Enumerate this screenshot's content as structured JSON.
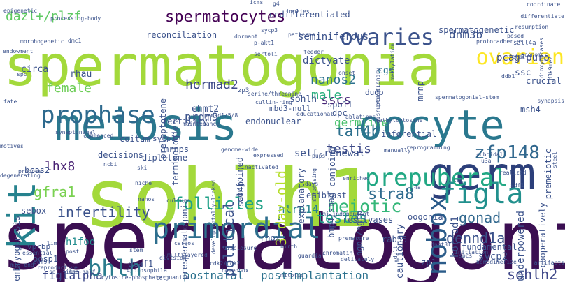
{
  "words": [
    {
      "text": "spermatogonial",
      "color": "#3b0f52",
      "rotate": false
    },
    {
      "text": "spermatogonia",
      "color": "#a3d93b",
      "rotate": false
    },
    {
      "text": "sohlh1",
      "color": "#a3d93b",
      "rotate": false
    },
    {
      "text": "meiosis",
      "color": "#2a788e",
      "rotate": false
    },
    {
      "text": "oocyte",
      "color": "#2a788e",
      "rotate": false
    },
    {
      "text": "germ",
      "color": "#2c3f7a",
      "rotate": false
    },
    {
      "text": "kit",
      "color": "#26828e",
      "rotate": true
    },
    {
      "text": "prepuberal",
      "color": "#22a884",
      "rotate": false
    },
    {
      "text": "primordial",
      "color": "#2e6f8e",
      "rotate": false
    },
    {
      "text": "prophase",
      "color": "#2e6a8e",
      "rotate": false
    },
    {
      "text": "figla",
      "color": "#21908d",
      "rotate": false
    },
    {
      "text": "nobox",
      "color": "#2b5c8a",
      "rotate": true
    },
    {
      "text": "bhlh",
      "color": "#2c7c8e",
      "rotate": false
    },
    {
      "text": "ovaries",
      "color": "#3b528b",
      "rotate": false
    },
    {
      "text": "spermatocytes",
      "color": "#440154",
      "rotate": false
    },
    {
      "text": "dazl+/plzf",
      "color": "#5ec962",
      "rotate": false
    },
    {
      "text": "follicles",
      "color": "#1fa187",
      "rotate": false
    },
    {
      "text": "infertility",
      "color": "#3b528b",
      "rotate": false
    },
    {
      "text": "testes",
      "color": "#1f9e89",
      "rotate": false
    },
    {
      "text": "meiotic",
      "color": "#35b779",
      "rotate": false
    },
    {
      "text": "dennd1a",
      "color": "#3b528b",
      "rotate": false
    },
    {
      "text": "zfp148",
      "color": "#31688e",
      "rotate": false
    },
    {
      "text": "taf4b",
      "color": "#2d708e",
      "rotate": false
    },
    {
      "text": "germline",
      "color": "#4ac16d",
      "rotate": false
    },
    {
      "text": "testis",
      "color": "#3e4a89",
      "rotate": false
    },
    {
      "text": "nanos2",
      "color": "#2c728e",
      "rotate": false
    },
    {
      "text": "sscs",
      "color": "#482677",
      "rotate": false
    },
    {
      "text": "male",
      "color": "#2ab07f",
      "rotate": false
    },
    {
      "text": "female",
      "color": "#6ece58",
      "rotate": false
    },
    {
      "text": "hormad2",
      "color": "#3e4a89",
      "rotate": false
    },
    {
      "text": "gonad",
      "color": "#31688e",
      "rotate": false
    },
    {
      "text": "stra8",
      "color": "#2f6b8e",
      "rotate": false
    },
    {
      "text": "lhx8",
      "color": "#482173",
      "rotate": false
    },
    {
      "text": "gfra1",
      "color": "#7ad151",
      "rotate": false
    },
    {
      "text": "sohlh2",
      "color": "#3f4788",
      "rotate": false
    },
    {
      "text": "postnatal",
      "color": "#2c728e",
      "rotate": false
    },
    {
      "text": "postimplantation",
      "color": "#2c728e",
      "rotate": false
    },
    {
      "text": "figlalpha",
      "color": "#3e4a89",
      "rotate": false
    },
    {
      "text": "nlrp14",
      "color": "#26828e",
      "rotate": false
    },
    {
      "text": "political",
      "color": "#3b528b",
      "rotate": true
    },
    {
      "text": "3-day-old",
      "color": "#b5de2b",
      "rotate": true
    },
    {
      "text": "h1foo",
      "color": "#228c8d",
      "rotate": false
    },
    {
      "text": "ovarian",
      "color": "#fde725",
      "rotate": false
    },
    {
      "text": "reconciliation",
      "color": "#3b528b",
      "rotate": false
    },
    {
      "text": "undifferentiated",
      "color": "#3b528b",
      "rotate": false
    },
    {
      "text": "dnm3b",
      "color": "#3b528b",
      "rotate": false
    },
    {
      "text": "pcag-puro",
      "color": "#3e4a89",
      "rotate": false
    },
    {
      "text": "ssc",
      "color": "#3b528b",
      "rotate": false
    },
    {
      "text": "cgs",
      "color": "#2c728e",
      "rotate": false
    },
    {
      "text": "seminiferous",
      "color": "#3b528b",
      "rotate": false
    },
    {
      "text": "dictyate",
      "color": "#3b528b",
      "rotate": false
    },
    {
      "text": "spermatogenetic",
      "color": "#3b528b",
      "rotate": false
    },
    {
      "text": "crucial",
      "color": "#3b528b",
      "rotate": false
    },
    {
      "text": "rhau",
      "color": "#3b528b",
      "rotate": false
    },
    {
      "text": "circa",
      "color": "#3b528b",
      "rotate": false
    },
    {
      "text": "ehmt2",
      "color": "#3b528b",
      "rotate": false
    },
    {
      "text": "sohlh",
      "color": "#3b528b",
      "rotate": false
    },
    {
      "text": "mbd3-null",
      "color": "#3b528b",
      "rotate": false
    },
    {
      "text": "spo11",
      "color": "#3b528b",
      "rotate": false
    },
    {
      "text": "dpc",
      "color": "#3b528b",
      "rotate": false
    },
    {
      "text": "dudp",
      "color": "#3b528b",
      "rotate": false
    },
    {
      "text": "prdm9",
      "color": "#3b528b",
      "rotate": false
    },
    {
      "text": "fertility",
      "color": "#3b528b",
      "rotate": false
    },
    {
      "text": "endonuclear",
      "color": "#3b528b",
      "rotate": false
    },
    {
      "text": "inferential",
      "color": "#3b528b",
      "rotate": false
    },
    {
      "text": "msh4",
      "color": "#3b528b",
      "rotate": false
    },
    {
      "text": "decisions",
      "color": "#3b528b",
      "rotate": false
    },
    {
      "text": "coitum",
      "color": "#3b528b",
      "rotate": false
    },
    {
      "text": "sycp1",
      "color": "#3b528b",
      "rotate": false
    },
    {
      "text": "mrnps",
      "color": "#3b528b",
      "rotate": false
    },
    {
      "text": "self-renewal",
      "color": "#3b528b",
      "rotate": false
    },
    {
      "text": "diplotene",
      "color": "#3b528b",
      "rotate": false
    },
    {
      "text": "bcas2",
      "color": "#3b528b",
      "rotate": false
    },
    {
      "text": "sebox",
      "color": "#3b528b",
      "rotate": false
    },
    {
      "text": "epiblast",
      "color": "#3b528b",
      "rotate": false
    },
    {
      "text": "resolvases",
      "color": "#3b528b",
      "rotate": false
    },
    {
      "text": "oogonia",
      "color": "#3b528b",
      "rotate": false
    },
    {
      "text": "rab35",
      "color": "#3b528b",
      "rotate": false
    },
    {
      "text": "rhox",
      "color": "#3b528b",
      "rotate": false
    },
    {
      "text": "fundamental",
      "color": "#3b528b",
      "rotate": false
    },
    {
      "text": "vprbp",
      "color": "#3b528b",
      "rotate": false
    },
    {
      "text": "oosp1",
      "color": "#3b528b",
      "rotate": false
    },
    {
      "text": "dcaf1",
      "color": "#3b528b",
      "rotate": false
    },
    {
      "text": "sycp2",
      "color": "#3b528b",
      "rotate": false
    },
    {
      "text": "zp1",
      "color": "#3b528b",
      "rotate": false
    },
    {
      "text": "embryogenesis",
      "color": "#3b528b",
      "rotate": true
    },
    {
      "text": "underpowered",
      "color": "#3b528b",
      "rotate": true
    },
    {
      "text": "cooperatively",
      "color": "#3b528b",
      "rotate": true
    },
    {
      "text": "hormad1",
      "color": "#3b528b",
      "rotate": true
    },
    {
      "text": "cautionary",
      "color": "#3b528b",
      "rotate": true
    },
    {
      "text": "conjoined",
      "color": "#3b528b",
      "rotate": true
    },
    {
      "text": "conjoing",
      "color": "#3b528b",
      "rotate": true
    },
    {
      "text": "explanatory",
      "color": "#3b528b",
      "rotate": true
    },
    {
      "text": "prespermatogonia",
      "color": "#3b528b",
      "rotate": true
    },
    {
      "text": "terminologies",
      "color": "#3b528b",
      "rotate": true
    },
    {
      "text": "preleptotene",
      "color": "#3b528b",
      "rotate": true
    },
    {
      "text": "premeiotic",
      "color": "#3b528b",
      "rotate": true
    },
    {
      "text": "sal4b",
      "color": "#3b528b",
      "rotate": true
    },
    {
      "text": "mrnp",
      "color": "#3b528b",
      "rotate": true
    },
    {
      "text": "ngn3/egfp",
      "color": "#3b528b",
      "rotate": true
    },
    {
      "text": "bmp4/smad",
      "color": "#3b528b",
      "rotate": true
    },
    {
      "text": "sall4a",
      "color": "#3b528b",
      "rotate": false
    },
    {
      "text": "zp3",
      "color": "#3b528b",
      "rotate": false
    },
    {
      "text": "ddb1",
      "color": "#3b528b",
      "rotate": false
    },
    {
      "text": "sdf1",
      "color": "#3b528b",
      "rotate": false
    },
    {
      "text": "synaptonemal",
      "color": "#3b528b",
      "rotate": false
    },
    {
      "text": "psmad1/5/8",
      "color": "#3b528b",
      "rotate": false
    },
    {
      "text": "processing-body",
      "color": "#3b528b",
      "rotate": false
    },
    {
      "text": "serine/threonine",
      "color": "#3b528b",
      "rotate": false
    },
    {
      "text": "cullin-ring",
      "color": "#3b528b",
      "rotate": false
    },
    {
      "text": "educational",
      "color": "#3b528b",
      "rotate": false
    },
    {
      "text": "ablations",
      "color": "#3b528b",
      "rotate": false
    },
    {
      "text": "methylcytosine",
      "color": "#3b528b",
      "rotate": false
    },
    {
      "text": "reprogramming",
      "color": "#3b528b",
      "rotate": false
    },
    {
      "text": "cytosine-phosphate-guanine",
      "color": "#3b528b",
      "rotate": false
    },
    {
      "text": "developmentally-linked",
      "color": "#3b528b",
      "rotate": false
    },
    {
      "text": "protocadherins",
      "color": "#3b528b",
      "rotate": false
    },
    {
      "text": "spermatogonial-stem",
      "color": "#3b528b",
      "rotate": false
    },
    {
      "text": "sal-like",
      "color": "#3b528b",
      "rotate": false
    },
    {
      "text": "one-half",
      "color": "#3b528b",
      "rotate": false
    },
    {
      "text": "homodimerize",
      "color": "#3b528b",
      "rotate": false
    },
    {
      "text": "multilayered",
      "color": "#3b528b",
      "rotate": false
    },
    {
      "text": "4/drosophila",
      "color": "#3b528b",
      "rotate": false
    },
    {
      "text": "cdk2/cdk2",
      "color": "#3b528b",
      "rotate": false
    },
    {
      "text": "artifacts",
      "color": "#3b528b",
      "rotate": false
    },
    {
      "text": "p-akt1",
      "color": "#3b528b",
      "rotate": false
    },
    {
      "text": "sertoli",
      "color": "#3b528b",
      "rotate": false
    },
    {
      "text": "patterns",
      "color": "#3b528b",
      "rotate": false
    },
    {
      "text": "dormant",
      "color": "#3b528b",
      "rotate": false
    },
    {
      "text": "sycp3",
      "color": "#3b528b",
      "rotate": false
    },
    {
      "text": "feeder",
      "color": "#3b528b",
      "rotate": false
    },
    {
      "text": "coordinate",
      "color": "#3b528b",
      "rotate": false
    },
    {
      "text": "differentiate",
      "color": "#3b528b",
      "rotate": false
    },
    {
      "text": "resumption",
      "color": "#3b528b",
      "rotate": false
    },
    {
      "text": "posed",
      "color": "#3b528b",
      "rotate": false
    },
    {
      "text": "fetal",
      "color": "#3b528b",
      "rotate": false
    },
    {
      "text": "synapsis",
      "color": "#3b528b",
      "rotate": false
    },
    {
      "text": "maintenance",
      "color": "#3b528b",
      "rotate": false
    },
    {
      "text": "commenced",
      "color": "#3b528b",
      "rotate": false
    },
    {
      "text": "fate",
      "color": "#3b528b",
      "rotate": false
    },
    {
      "text": "motives",
      "color": "#3b528b",
      "rotate": false
    },
    {
      "text": "degenerating",
      "color": "#3b528b",
      "rotate": false
    },
    {
      "text": "epigenetic",
      "color": "#3b528b",
      "rotate": false
    },
    {
      "text": "morphogenetic",
      "color": "#3b528b",
      "rotate": false
    },
    {
      "text": "endowment",
      "color": "#3b528b",
      "rotate": false
    },
    {
      "text": "dmc1",
      "color": "#3b528b",
      "rotate": false
    },
    {
      "text": "icms",
      "color": "#3b528b",
      "rotate": false
    },
    {
      "text": "niche",
      "color": "#3b528b",
      "rotate": false
    },
    {
      "text": "nanos",
      "color": "#3b528b",
      "rotate": false
    },
    {
      "text": "culture",
      "color": "#3b528b",
      "rotate": false
    },
    {
      "text": "cargos",
      "color": "#3b528b",
      "rotate": false
    },
    {
      "text": "stem",
      "color": "#3b528b",
      "rotate": false
    },
    {
      "text": "disclosure",
      "color": "#3b528b",
      "rotate": false
    },
    {
      "text": "division",
      "color": "#3b528b",
      "rotate": false
    },
    {
      "text": "homeobox",
      "color": "#3b528b",
      "rotate": false
    },
    {
      "text": "mitotic",
      "color": "#3b528b",
      "rotate": false
    },
    {
      "text": "delicately",
      "color": "#3b528b",
      "rotate": false
    },
    {
      "text": "initiation",
      "color": "#3b528b",
      "rotate": false
    },
    {
      "text": "premature",
      "color": "#3b528b",
      "rotate": false
    },
    {
      "text": "guardian",
      "color": "#3b528b",
      "rotate": false
    },
    {
      "text": "birth",
      "color": "#3b528b",
      "rotate": false
    },
    {
      "text": "post",
      "color": "#3b528b",
      "rotate": false
    },
    {
      "text": "essential",
      "color": "#3b528b",
      "rotate": false
    },
    {
      "text": "reproductive",
      "color": "#3b528b",
      "rotate": false
    },
    {
      "text": "enriched",
      "color": "#3b528b",
      "rotate": false
    },
    {
      "text": "cuboidal",
      "color": "#3b528b",
      "rotate": false
    },
    {
      "text": "realized",
      "color": "#3b528b",
      "rotate": false
    },
    {
      "text": "steel",
      "color": "#3b528b",
      "rotate": false
    },
    {
      "text": "economic",
      "color": "#3b528b",
      "rotate": false
    },
    {
      "text": "h3k9me2",
      "color": "#3b528b",
      "rotate": false
    },
    {
      "text": "dioxygenases",
      "color": "#3b528b",
      "rotate": false
    },
    {
      "text": "mi-independent",
      "color": "#3b528b",
      "rotate": false
    },
    {
      "text": "dnmt3l",
      "color": "#3b528b",
      "rotate": false
    },
    {
      "text": "spc",
      "color": "#3b528b",
      "rotate": false
    },
    {
      "text": "spcs",
      "color": "#3b528b",
      "rotate": false
    },
    {
      "text": "4a",
      "color": "#3b528b",
      "rotate": false
    },
    {
      "text": "tdt",
      "color": "#3b528b",
      "rotate": false
    },
    {
      "text": "gdf9",
      "color": "#3b528b",
      "rotate": false
    },
    {
      "text": "g4",
      "color": "#3b528b",
      "rotate": false
    },
    {
      "text": "u3a",
      "color": "#3b528b",
      "rotate": false
    },
    {
      "text": "tet",
      "color": "#3b528b",
      "rotate": false
    },
    {
      "text": "ski",
      "color": "#3b528b",
      "rotate": false
    },
    {
      "text": "ncbi",
      "color": "#3b528b",
      "rotate": false
    },
    {
      "text": "manually",
      "color": "#3b528b",
      "rotate": false
    },
    {
      "text": "implies",
      "color": "#3b528b",
      "rotate": false
    },
    {
      "text": "propose",
      "color": "#3b528b",
      "rotate": false
    },
    {
      "text": "lim",
      "color": "#3b528b",
      "rotate": false
    },
    {
      "text": "mid-end",
      "color": "#3b528b",
      "rotate": false
    },
    {
      "text": "evolutionary",
      "color": "#3b528b",
      "rotate": false
    },
    {
      "text": "disruption",
      "color": "#3b528b",
      "rotate": false
    },
    {
      "text": "surprising",
      "color": "#3b528b",
      "rotate": false
    },
    {
      "text": "adult",
      "color": "#3b528b",
      "rotate": false
    },
    {
      "text": "methylation",
      "color": "#3b528b",
      "rotate": false
    },
    {
      "text": "chromatin",
      "color": "#3b528b",
      "rotate": false
    },
    {
      "text": "expressed",
      "color": "#3b528b",
      "rotate": false
    },
    {
      "text": "onset",
      "color": "#3b528b",
      "rotate": false
    },
    {
      "text": "genome-wide",
      "color": "#3b528b",
      "rotate": false
    },
    {
      "text": "inactivated",
      "color": "#3b528b",
      "rotate": false
    },
    {
      "text": "pups",
      "color": "#3b528b",
      "rotate": false
    },
    {
      "text": "days",
      "color": "#3b528b",
      "rotate": false
    },
    {
      "text": "nucleus",
      "color": "#3b528b",
      "rotate": false
    },
    {
      "text": "fl",
      "color": "#3b528b",
      "rotate": false
    },
    {
      "text": "tubules",
      "color": "#3b528b",
      "rotate": false
    },
    {
      "text": "tnfl",
      "color": "#3b528b",
      "rotate": false
    }
  ]
}
